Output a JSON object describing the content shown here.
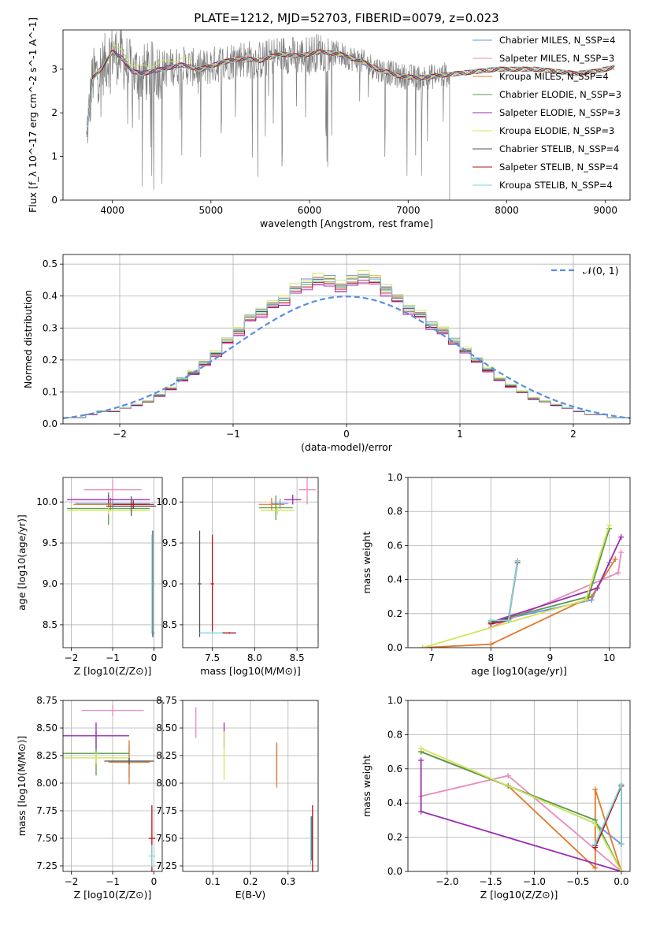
{
  "figure_title": "PLATE=1212, MJD=52703, FIBERID=0079, z=0.023",
  "colors": {
    "Chabrier MILES": "#6f8fe6",
    "Salpeter MILES": "#e88bbd",
    "Kroupa MILES": "#e07a2a",
    "Chabrier ELODIE": "#5a9a4c",
    "Salpeter ELODIE": "#9a2bb5",
    "Kroupa ELODIE": "#d2e65a",
    "Chabrier STELIB": "#555555",
    "Salpeter STELIB": "#b3131b",
    "Kroupa STELIB": "#7fd6dd",
    "data": "#808080",
    "normal": "#5b8ee0",
    "grid": "#b0b0b0"
  },
  "chart_data": [
    {
      "id": "spectrum",
      "type": "line",
      "xlabel": "wavelength [Angstrom, rest frame]",
      "ylabel": "Flux [f_λ 10^-17 erg cm^-2 s^-1 A^-1]",
      "xlim": [
        3500,
        9250
      ],
      "ylim": [
        0,
        3.9
      ],
      "xticks": [
        4000,
        5000,
        6000,
        7000,
        8000,
        9000
      ],
      "yticks": [
        0,
        1,
        2,
        3
      ],
      "grid": false,
      "legend_position": "top-right",
      "legend": [
        {
          "label": "Chabrier MILES, N_SSP=4",
          "series": "Chabrier MILES"
        },
        {
          "label": "Salpeter MILES, N_SSP=3",
          "series": "Salpeter MILES"
        },
        {
          "label": "Kroupa MILES, N_SSP=4",
          "series": "Kroupa MILES"
        },
        {
          "label": "Chabrier ELODIE, N_SSP=3",
          "series": "Chabrier ELODIE"
        },
        {
          "label": "Salpeter ELODIE, N_SSP=3",
          "series": "Salpeter ELODIE"
        },
        {
          "label": "Kroupa ELODIE, N_SSP=3",
          "series": "Kroupa ELODIE"
        },
        {
          "label": "Chabrier STELIB, N_SSP=4",
          "series": "Chabrier STELIB"
        },
        {
          "label": "Salpeter STELIB, N_SSP=4",
          "series": "Salpeter STELIB"
        },
        {
          "label": "Kroupa STELIB, N_SSP=4",
          "series": "Kroupa STELIB"
        }
      ],
      "continuum": {
        "x": [
          3740,
          3800,
          3900,
          4000,
          4100,
          4200,
          4300,
          4500,
          4700,
          4900,
          5100,
          5300,
          5500,
          5700,
          5900,
          6100,
          6300,
          6500,
          6700,
          6900,
          7100,
          7300,
          7500,
          7700,
          7900,
          8100,
          8300,
          8500,
          8700,
          8900,
          9100
        ],
        "y": [
          1.5,
          2.8,
          3.05,
          3.4,
          3.25,
          2.95,
          2.9,
          3.0,
          3.1,
          3.0,
          3.15,
          3.25,
          3.2,
          3.35,
          3.3,
          3.4,
          3.35,
          3.2,
          3.0,
          2.85,
          2.8,
          2.85,
          2.9,
          2.95,
          3.0,
          3.0,
          3.0,
          2.95,
          2.9,
          2.95,
          3.05
        ]
      },
      "data_range": [
        3740,
        7420
      ]
    },
    {
      "id": "residuals",
      "type": "bar",
      "xlabel": "(data-model)/error",
      "ylabel": "Normed distribution",
      "xlim": [
        -2.5,
        2.5
      ],
      "ylim": [
        0,
        0.53
      ],
      "xticks": [
        -2,
        -1,
        0,
        1,
        2
      ],
      "yticks": [
        0.0,
        0.1,
        0.2,
        0.3,
        0.4,
        0.5
      ],
      "grid": true,
      "legend_position": "top-right",
      "legend": [
        {
          "label": "𝒩(0, 1)",
          "series": "normal"
        }
      ],
      "bin_width": 0.1,
      "bin_start": -2.5,
      "hist_base": [
        0.02,
        0.02,
        0.03,
        0.04,
        0.04,
        0.05,
        0.06,
        0.07,
        0.09,
        0.11,
        0.14,
        0.16,
        0.19,
        0.22,
        0.26,
        0.29,
        0.33,
        0.35,
        0.37,
        0.39,
        0.42,
        0.44,
        0.45,
        0.45,
        0.43,
        0.45,
        0.46,
        0.45,
        0.42,
        0.39,
        0.36,
        0.34,
        0.31,
        0.29,
        0.26,
        0.23,
        0.2,
        0.17,
        0.14,
        0.12,
        0.1,
        0.08,
        0.07,
        0.06,
        0.05,
        0.04,
        0.03,
        0.03,
        0.02,
        0.02
      ],
      "hist_offsets": {
        "Chabrier MILES": 0.01,
        "Salpeter MILES": -0.012,
        "Kroupa MILES": 0.006,
        "Chabrier ELODIE": -0.004,
        "Salpeter ELODIE": -0.015,
        "Kroupa ELODIE": 0.014,
        "Chabrier STELIB": 0.002,
        "Salpeter STELIB": -0.008,
        "Kroupa STELIB": 0.004
      }
    },
    {
      "id": "age_vs_Z",
      "type": "scatter",
      "xlabel": "Z [log10(Z/Z⊙)]",
      "ylabel": "age  [log10(age/yr)]",
      "xlim": [
        -2.2,
        0.2
      ],
      "ylim": [
        8.22,
        10.3
      ],
      "xticks": [
        -2,
        -1,
        0
      ],
      "yticks": [
        8.5,
        9.0,
        9.5,
        10.0
      ],
      "grid": true,
      "points": [
        {
          "series": "Chabrier MILES",
          "x": -1.0,
          "y": 9.98,
          "xerr": 0.9,
          "yerr": 0.06
        },
        {
          "series": "Salpeter MILES",
          "x": -1.0,
          "y": 10.15,
          "xerr": 0.7,
          "yerr": 0.12
        },
        {
          "series": "Kroupa MILES",
          "x": -1.05,
          "y": 9.97,
          "xerr": 0.9,
          "yerr": 0.08
        },
        {
          "series": "Chabrier ELODIE",
          "x": -1.1,
          "y": 9.92,
          "xerr": 1.0,
          "yerr": 0.2
        },
        {
          "series": "Salpeter ELODIE",
          "x": -1.1,
          "y": 10.03,
          "xerr": 1.0,
          "yerr": 0.06
        },
        {
          "series": "Kroupa ELODIE",
          "x": -1.1,
          "y": 9.9,
          "xerr": 1.0,
          "yerr": 0.05
        },
        {
          "series": "Chabrier STELIB",
          "x": -0.55,
          "y": 9.95,
          "xerr": 0.6,
          "yerr": 0.12
        },
        {
          "series": "Salpeter STELIB",
          "x": -0.5,
          "y": 9.97,
          "xerr": 0.5,
          "yerr": 0.05
        },
        {
          "series": "Kroupa STELIB",
          "x": -0.02,
          "y": 8.4,
          "xerr": 0.05,
          "yerr": 0.02
        },
        {
          "series": "Chabrier STELIB",
          "x": -0.03,
          "y": 9.0,
          "xerr": 0.02,
          "yerr": 0.65
        },
        {
          "series": "Kroupa STELIB",
          "x": -0.05,
          "y": 9.0,
          "xerr": 0.02,
          "yerr": 0.6
        }
      ]
    },
    {
      "id": "age_vs_mass",
      "type": "scatter",
      "xlabel": "mass [log10(M/M⊙)]",
      "ylabel": "",
      "xlim": [
        7.15,
        8.75
      ],
      "ylim": [
        8.22,
        10.3
      ],
      "xticks": [
        7.5,
        8.0,
        8.5
      ],
      "yticks": [
        8.5,
        9.0,
        9.5,
        10.0
      ],
      "grid": true,
      "points": [
        {
          "series": "Chabrier MILES",
          "x": 8.3,
          "y": 9.98,
          "xerr": 0.1,
          "yerr": 0.06
        },
        {
          "series": "Salpeter MILES",
          "x": 8.62,
          "y": 10.15,
          "xerr": 0.1,
          "yerr": 0.18
        },
        {
          "series": "Kroupa MILES",
          "x": 8.2,
          "y": 9.97,
          "xerr": 0.15,
          "yerr": 0.08
        },
        {
          "series": "Chabrier ELODIE",
          "x": 8.25,
          "y": 9.93,
          "xerr": 0.2,
          "yerr": 0.15
        },
        {
          "series": "Salpeter ELODIE",
          "x": 8.45,
          "y": 10.03,
          "xerr": 0.1,
          "yerr": 0.06
        },
        {
          "series": "Kroupa ELODIE",
          "x": 8.27,
          "y": 9.9,
          "xerr": 0.2,
          "yerr": 0.05
        },
        {
          "series": "Chabrier STELIB",
          "x": 7.35,
          "y": 9.0,
          "xerr": 0.02,
          "yerr": 0.65
        },
        {
          "series": "Salpeter STELIB",
          "x": 7.5,
          "y": 9.0,
          "xerr": 0.02,
          "yerr": 0.6
        },
        {
          "series": "Kroupa STELIB",
          "x": 7.5,
          "y": 8.4,
          "xerr": 0.15,
          "yerr": 0.02
        },
        {
          "series": "Salpeter STELIB",
          "x": 7.7,
          "y": 8.4,
          "xerr": 0.08,
          "yerr": 0.01
        }
      ]
    },
    {
      "id": "weight_vs_age",
      "type": "line",
      "xlabel": "age  [log10(age/yr)]",
      "ylabel": "mass weight",
      "xlim": [
        6.6,
        10.35
      ],
      "ylim": [
        0,
        1.0
      ],
      "xticks": [
        7,
        8,
        9,
        10
      ],
      "yticks": [
        0.0,
        0.2,
        0.4,
        0.6,
        0.8,
        1.0
      ],
      "grid": true,
      "series": [
        {
          "series": "Chabrier MILES",
          "x": [
            8.0,
            9.7,
            10.0
          ],
          "y": [
            0.15,
            0.28,
            0.5
          ]
        },
        {
          "series": "Salpeter MILES",
          "x": [
            8.0,
            10.15,
            10.2
          ],
          "y": [
            0.12,
            0.44,
            0.56
          ]
        },
        {
          "series": "Kroupa MILES",
          "x": [
            6.85,
            8.0,
            9.7,
            10.1
          ],
          "y": [
            0.0,
            0.02,
            0.3,
            0.52
          ]
        },
        {
          "series": "Chabrier ELODIE",
          "x": [
            8.0,
            9.65,
            10.0
          ],
          "y": [
            0.15,
            0.3,
            0.7
          ]
        },
        {
          "series": "Salpeter ELODIE",
          "x": [
            8.0,
            9.8,
            10.2
          ],
          "y": [
            0.15,
            0.35,
            0.65
          ]
        },
        {
          "series": "Kroupa ELODIE",
          "x": [
            6.85,
            9.6,
            10.0
          ],
          "y": [
            0.0,
            0.28,
            0.72
          ]
        },
        {
          "series": "Chabrier STELIB",
          "x": [
            8.0,
            8.3,
            8.45
          ],
          "y": [
            0.15,
            0.17,
            0.51
          ]
        },
        {
          "series": "Salpeter STELIB",
          "x": [
            8.0,
            8.3,
            8.45
          ],
          "y": [
            0.14,
            0.16,
            0.5
          ]
        },
        {
          "series": "Kroupa STELIB",
          "x": [
            8.0,
            8.3,
            8.45
          ],
          "y": [
            0.16,
            0.16,
            0.51
          ]
        }
      ]
    },
    {
      "id": "mass_vs_Z",
      "type": "scatter",
      "xlabel": "Z [log10(Z/Z⊙)]",
      "ylabel": "mass [log10(M/M⊙)]",
      "xlim": [
        -2.2,
        0.2
      ],
      "ylim": [
        7.2,
        8.75
      ],
      "xticks": [
        -2,
        -1,
        0
      ],
      "yticks": [
        7.25,
        7.5,
        7.75,
        8.0,
        8.25,
        8.5,
        8.75
      ],
      "grid": true,
      "points": [
        {
          "series": "Chabrier MILES",
          "x": -0.6,
          "y": 8.2,
          "xerr": 0.5,
          "yerr": 0.15
        },
        {
          "series": "Salpeter MILES",
          "x": -1.0,
          "y": 8.66,
          "xerr": 0.75,
          "yerr": 0.05
        },
        {
          "series": "Kroupa MILES",
          "x": -0.6,
          "y": 8.19,
          "xerr": 0.5,
          "yerr": 0.2
        },
        {
          "series": "Chabrier ELODIE",
          "x": -1.4,
          "y": 8.27,
          "xerr": 0.8,
          "yerr": 0.2
        },
        {
          "series": "Salpeter ELODIE",
          "x": -1.4,
          "y": 8.43,
          "xerr": 0.8,
          "yerr": 0.12
        },
        {
          "series": "Kroupa ELODIE",
          "x": -1.4,
          "y": 8.23,
          "xerr": 0.8,
          "yerr": 0.05
        },
        {
          "series": "Chabrier STELIB",
          "x": -0.6,
          "y": 8.2,
          "xerr": 0.6,
          "yerr": 0.03
        },
        {
          "series": "Salpeter STELIB",
          "x": -0.05,
          "y": 7.5,
          "xerr": 0.08,
          "yerr": 0.3
        },
        {
          "series": "Kroupa STELIB",
          "x": -0.05,
          "y": 7.34,
          "xerr": 0.08,
          "yerr": 0.1
        }
      ]
    },
    {
      "id": "mass_vs_ebv",
      "type": "scatter",
      "xlabel": "E(B-V)",
      "ylabel": "",
      "xlim": [
        0.02,
        0.38
      ],
      "ylim": [
        7.2,
        8.75
      ],
      "xticks": [
        0.1,
        0.2,
        0.3
      ],
      "yticks": [
        7.25,
        7.5,
        7.75,
        8.0,
        8.25,
        8.5,
        8.75
      ],
      "grid": true,
      "points": [
        {
          "series": "Salpeter MILES",
          "x": 0.055,
          "y": 8.55,
          "xerr": 0,
          "yerr": 0.14
        },
        {
          "series": "Salpeter ELODIE",
          "x": 0.13,
          "y": 8.43,
          "xerr": 0,
          "yerr": 0.12
        },
        {
          "series": "Kroupa ELODIE",
          "x": 0.13,
          "y": 8.25,
          "xerr": 0,
          "yerr": 0.22
        },
        {
          "series": "Chabrier MILES",
          "x": 0.27,
          "y": 8.2,
          "xerr": 0,
          "yerr": 0.17
        },
        {
          "series": "Kroupa MILES",
          "x": 0.27,
          "y": 8.16,
          "xerr": 0,
          "yerr": 0.2
        },
        {
          "series": "Salpeter STELIB",
          "x": 0.365,
          "y": 7.5,
          "xerr": 0,
          "yerr": 0.3
        },
        {
          "series": "Kroupa STELIB",
          "x": 0.36,
          "y": 7.48,
          "xerr": 0,
          "yerr": 0.22
        },
        {
          "series": "Chabrier STELIB",
          "x": 0.363,
          "y": 7.5,
          "xerr": 0,
          "yerr": 0.2
        }
      ]
    },
    {
      "id": "weight_vs_Z",
      "type": "line",
      "xlabel": "Z [log10(Z/Z⊙)]",
      "ylabel": "mass weight",
      "xlim": [
        -2.45,
        0.1
      ],
      "ylim": [
        0,
        1.0
      ],
      "xticks": [
        -2.0,
        -1.5,
        -1.0,
        -0.5,
        0.0
      ],
      "yticks": [
        0.0,
        0.2,
        0.4,
        0.6,
        0.8,
        1.0
      ],
      "grid": true,
      "series": [
        {
          "series": "Chabrier MILES",
          "x": [
            -2.3,
            -1.3,
            -0.3,
            0.0
          ],
          "y": [
            0.7,
            0.5,
            0.28,
            0.16
          ]
        },
        {
          "series": "Salpeter MILES",
          "x": [
            -2.3,
            -1.3,
            0.0
          ],
          "y": [
            0.44,
            0.56,
            0.0
          ]
        },
        {
          "series": "Kroupa MILES",
          "x": [
            -2.3,
            -1.3,
            -0.3,
            -0.3,
            0.0
          ],
          "y": [
            0.7,
            0.5,
            0.02,
            0.48,
            0.0
          ]
        },
        {
          "series": "Chabrier ELODIE",
          "x": [
            -2.3,
            -1.3,
            -0.3,
            0.0
          ],
          "y": [
            0.7,
            0.5,
            0.3,
            0.0
          ]
        },
        {
          "series": "Salpeter ELODIE",
          "x": [
            -2.3,
            -2.3,
            0.0
          ],
          "y": [
            0.65,
            0.35,
            0.0
          ]
        },
        {
          "series": "Kroupa ELODIE",
          "x": [
            -2.3,
            -0.3,
            0.0
          ],
          "y": [
            0.72,
            0.28,
            0.0
          ]
        },
        {
          "series": "Chabrier STELIB",
          "x": [
            -0.3,
            0.0,
            0.0
          ],
          "y": [
            0.15,
            0.5,
            0.16
          ]
        },
        {
          "series": "Salpeter STELIB",
          "x": [
            -0.3,
            0.0,
            0.0
          ],
          "y": [
            0.14,
            0.5,
            0.16
          ]
        },
        {
          "series": "Kroupa STELIB",
          "x": [
            -0.3,
            0.0,
            0.0
          ],
          "y": [
            0.16,
            0.51,
            0.16
          ]
        }
      ]
    }
  ]
}
